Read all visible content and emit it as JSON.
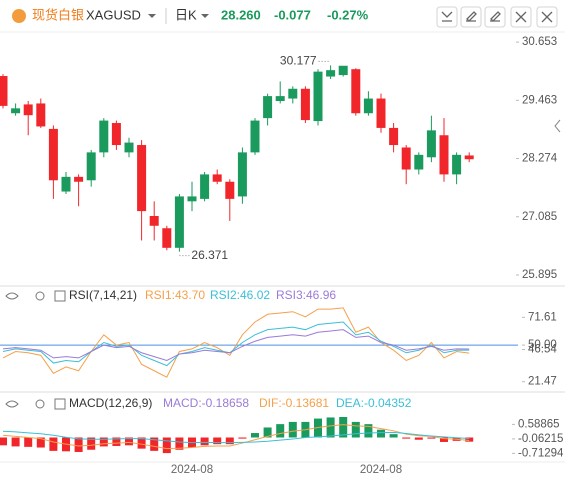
{
  "header": {
    "name": "现货白银",
    "symbol": "XAGUSD",
    "period": "日K",
    "price": "28.260",
    "change": "-0.077",
    "change_pct": "-0.27%"
  },
  "chart_data": [
    {
      "type": "candlestick",
      "categories": [
        null,
        null,
        null,
        null,
        null,
        null,
        null,
        null,
        null,
        null,
        null,
        null,
        null,
        null,
        null,
        "2024-08",
        null,
        null,
        null,
        null,
        null,
        null,
        null,
        null,
        null,
        null,
        null,
        null,
        null,
        null,
        "2024-08",
        null,
        null,
        null,
        null,
        null,
        null,
        null
      ],
      "open": [
        29.96,
        29.2,
        29.38,
        29.4,
        28.88,
        27.6,
        27.9,
        27.83,
        28.4,
        29.0,
        28.4,
        28.55,
        27.1,
        26.85,
        26.45,
        27.4,
        27.45,
        27.95,
        27.8,
        27.5,
        28.4,
        29.1,
        29.45,
        29.5,
        29.7,
        29.04,
        29.95,
        29.98,
        30.1,
        29.2,
        29.5,
        28.9,
        28.5,
        28.05,
        28.3,
        28.75,
        27.95,
        28.337
      ],
      "high": [
        30.0,
        29.4,
        29.45,
        29.5,
        28.95,
        28.0,
        27.95,
        28.45,
        29.1,
        29.05,
        28.7,
        28.65,
        27.4,
        26.9,
        27.55,
        27.8,
        28.0,
        28.05,
        27.85,
        28.5,
        29.1,
        29.6,
        29.85,
        29.75,
        29.75,
        30.1,
        30.177,
        30.15,
        30.12,
        29.65,
        29.6,
        29.0,
        28.55,
        28.4,
        29.15,
        29.1,
        28.4,
        28.4
      ],
      "low": [
        29.3,
        29.15,
        28.75,
        28.9,
        27.45,
        27.55,
        27.3,
        27.7,
        28.3,
        28.45,
        28.3,
        26.6,
        26.6,
        26.4,
        26.371,
        27.2,
        27.4,
        27.75,
        27.0,
        27.35,
        28.35,
        28.95,
        29.4,
        29.4,
        29.0,
        28.95,
        29.9,
        29.95,
        29.15,
        29.15,
        28.8,
        28.4,
        27.75,
        27.95,
        28.2,
        27.8,
        27.75,
        28.2
      ],
      "close": [
        29.35,
        29.3,
        29.16,
        28.93,
        27.83,
        27.9,
        27.8,
        28.4,
        29.05,
        28.55,
        28.6,
        27.2,
        26.9,
        26.45,
        27.5,
        27.5,
        27.95,
        27.8,
        27.45,
        28.4,
        29.05,
        29.55,
        29.55,
        29.7,
        29.06,
        30.05,
        30.08,
        30.17,
        29.2,
        29.5,
        28.9,
        28.55,
        28.05,
        28.35,
        28.85,
        27.95,
        28.35,
        28.26
      ],
      "up_color": "#1a9a5c",
      "down_color": "#f0262a",
      "ylim": [
        25.69,
        30.86
      ],
      "yticks": [
        30.653,
        29.463,
        28.274,
        27.085,
        25.895
      ]
    },
    {
      "type": "line",
      "title": "RSI(7,14,21)",
      "series": [
        {
          "name": "RSI1:43.70",
          "color": "#f5a04a",
          "values": [
            40,
            45,
            44,
            42,
            28,
            33,
            30,
            45,
            58,
            50,
            52,
            35,
            30,
            25,
            45,
            47,
            52,
            48,
            42,
            58,
            68,
            74,
            75,
            76,
            72,
            78,
            78,
            79,
            60,
            64,
            52,
            46,
            38,
            42,
            52,
            40,
            45,
            43.7
          ]
        },
        {
          "name": "RSI2:46.02",
          "color": "#3bbfd8",
          "values": [
            45,
            47,
            46,
            45,
            36,
            38,
            37,
            45,
            52,
            49,
            50,
            42,
            38,
            34,
            43,
            45,
            48,
            46,
            44,
            52,
            58,
            62,
            63,
            64,
            62,
            66,
            67,
            68,
            58,
            60,
            53,
            49,
            44,
            46,
            50,
            44,
            46,
            46.02
          ]
        },
        {
          "name": "RSI3:46.96",
          "color": "#9b7ad8",
          "values": [
            47,
            48,
            47,
            46,
            40,
            41,
            40,
            45,
            50,
            48,
            49,
            44,
            41,
            38,
            43,
            44,
            46,
            45,
            44,
            49,
            53,
            56,
            57,
            58,
            57,
            60,
            61,
            62,
            56,
            57,
            52,
            50,
            46,
            47,
            49,
            46,
            47,
            46.96
          ]
        }
      ],
      "reference_line": 50,
      "reference_color": "#4a90e2",
      "ylim": [
        15,
        82
      ],
      "yticks": [
        71.61,
        {
          "value": 50,
          "label": "50.00"
        },
        46.54,
        21.47
      ]
    },
    {
      "type": "macd",
      "title": "MACD(12,26,9)",
      "series": [
        {
          "name": "MACD:-0.18658",
          "color": "#9b7ad8",
          "up_color": "#1a9a5c",
          "down_color": "#f0262a",
          "values": [
            -0.35,
            -0.4,
            -0.42,
            -0.45,
            -0.6,
            -0.62,
            -0.65,
            -0.55,
            -0.4,
            -0.38,
            -0.35,
            -0.5,
            -0.6,
            -0.7,
            -0.55,
            -0.45,
            -0.35,
            -0.3,
            -0.3,
            -0.05,
            0.2,
            0.45,
            0.6,
            0.7,
            0.7,
            0.85,
            0.9,
            0.92,
            0.7,
            0.6,
            0.35,
            0.15,
            -0.05,
            -0.1,
            -0.05,
            -0.2,
            -0.15,
            -0.18658
          ]
        },
        {
          "name": "DIF:-0.13681",
          "color": "#f5a04a",
          "values": [
            0.1,
            0.05,
            0,
            -0.05,
            -0.2,
            -0.3,
            -0.38,
            -0.35,
            -0.28,
            -0.25,
            -0.22,
            -0.3,
            -0.4,
            -0.5,
            -0.48,
            -0.45,
            -0.4,
            -0.38,
            -0.38,
            -0.25,
            -0.1,
            0.05,
            0.18,
            0.28,
            0.35,
            0.45,
            0.52,
            0.58,
            0.52,
            0.5,
            0.4,
            0.3,
            0.15,
            0.08,
            0.05,
            -0.05,
            -0.08,
            -0.13681
          ]
        },
        {
          "name": "DEA:-0.04352",
          "color": "#3bbfd8",
          "values": [
            0.28,
            0.25,
            0.21,
            0.17,
            0.1,
            0.01,
            -0.06,
            -0.08,
            -0.08,
            -0.06,
            -0.05,
            -0.05,
            -0.1,
            -0.15,
            -0.2,
            -0.23,
            -0.22,
            -0.23,
            -0.23,
            -0.22,
            -0.2,
            -0.17,
            -0.12,
            -0.07,
            0,
            0.03,
            0.07,
            0.12,
            0.17,
            0.2,
            0.22,
            0.23,
            0.18,
            0.12,
            0.07,
            0.03,
            -0.01,
            -0.04352
          ]
        }
      ],
      "ylim": [
        -1.1,
        1.1
      ],
      "yticks": [
        0.58865,
        -0.06215,
        -0.71294
      ]
    }
  ]
}
